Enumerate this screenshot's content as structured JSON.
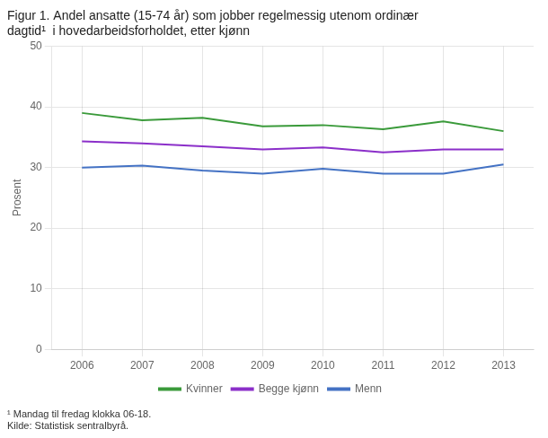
{
  "chart_data": {
    "type": "line",
    "title": "Figur 1. Andel ansatte (15-74 år) som jobber regelmessig utenom ordinær\ndagtid¹  i hovedarbeidsforholdet, etter kjønn",
    "ylabel": "Prosent",
    "annotations": [
      "¹ Mandag til fredag klokka 06-18.",
      "Kilde: Statistisk sentralbyrå."
    ],
    "x": [
      2006,
      2007,
      2008,
      2009,
      2010,
      2011,
      2012,
      2013
    ],
    "series": [
      {
        "name": "Kvinner",
        "color": "#3a9a3a",
        "values": [
          39.0,
          37.8,
          38.2,
          36.8,
          37.0,
          36.3,
          37.6,
          36.0
        ]
      },
      {
        "name": "Begge kjønn",
        "color": "#8b2fc9",
        "values": [
          34.3,
          34.0,
          33.5,
          33.0,
          33.3,
          32.5,
          33.0,
          33.0
        ]
      },
      {
        "name": "Menn",
        "color": "#4472c4",
        "values": [
          30.0,
          30.3,
          29.5,
          29.0,
          29.8,
          29.0,
          29.0,
          30.5
        ]
      }
    ],
    "xlim": [
      2005.5,
      2013.5
    ],
    "xticks": [
      2006,
      2007,
      2008,
      2009,
      2010,
      2011,
      2012,
      2013
    ],
    "ylim": [
      0,
      50
    ],
    "yticks": [
      0,
      10,
      20,
      30,
      40,
      50
    ],
    "grid": true,
    "legend": "bottom"
  }
}
